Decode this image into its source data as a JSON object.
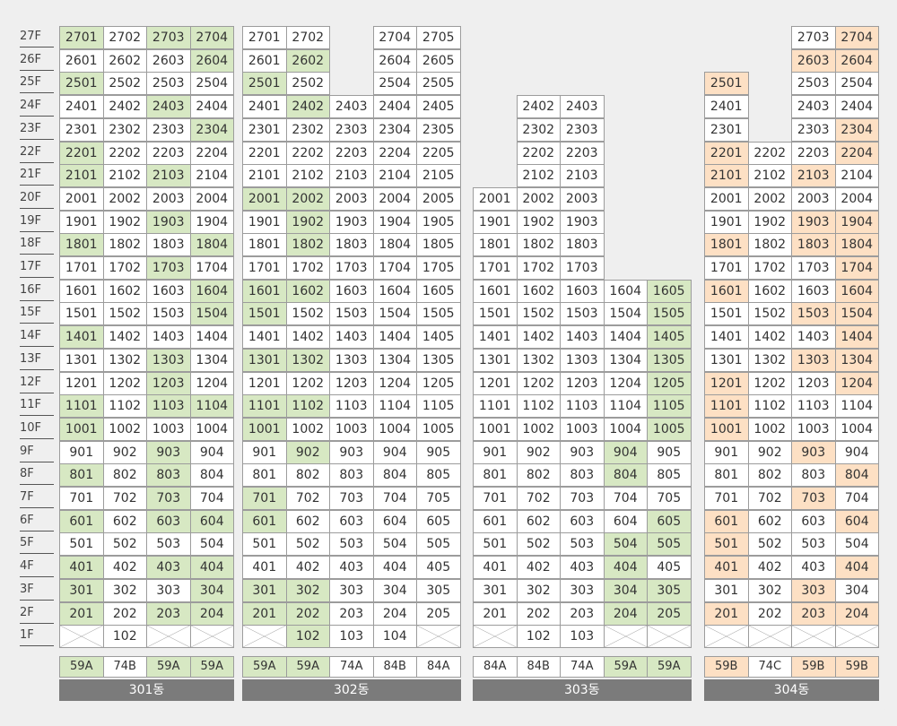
{
  "colors": {
    "green": "#d7e8c3",
    "orange": "#fde0c4",
    "empty": "#ffffff",
    "label_bar": "#7b7b7b"
  },
  "floors": [
    "27F",
    "26F",
    "25F",
    "24F",
    "23F",
    "22F",
    "21F",
    "20F",
    "19F",
    "18F",
    "17F",
    "16F",
    "15F",
    "14F",
    "13F",
    "12F",
    "11F",
    "10F",
    "9F",
    "8F",
    "7F",
    "6F",
    "5F",
    "4F",
    "3F",
    "2F",
    "1F"
  ],
  "buildings": [
    {
      "name": "301동",
      "units": 4,
      "min_floor": 1,
      "max_floor": 27,
      "color": "green",
      "types": [
        "59A",
        "74B",
        "59A",
        "59A"
      ],
      "type_colors": [
        "g",
        "",
        "g",
        "g"
      ],
      "absent": [],
      "x_cells": [
        "1-1",
        "1-3",
        "1-4"
      ],
      "highlight": [
        "27-1",
        "27-3",
        "27-4",
        "26-4",
        "25-1",
        "24-3",
        "23-4",
        "22-1",
        "21-1",
        "21-3",
        "19-3",
        "18-1",
        "18-4",
        "17-3",
        "16-4",
        "15-4",
        "14-1",
        "13-3",
        "12-3",
        "11-1",
        "11-3",
        "11-4",
        "10-1",
        "9-3",
        "8-1",
        "8-3",
        "7-3",
        "6-1",
        "6-3",
        "6-4",
        "4-1",
        "4-3",
        "4-4",
        "3-1",
        "3-4",
        "2-1",
        "2-3",
        "2-4"
      ]
    },
    {
      "name": "302동",
      "units": 5,
      "min_floor": 1,
      "max_floor": 27,
      "color": "green",
      "types": [
        "59A",
        "59A",
        "74A",
        "84B",
        "84A"
      ],
      "type_colors": [
        "g",
        "g",
        "",
        "",
        ""
      ],
      "absent": [
        "27-3",
        "26-3",
        "25-3"
      ],
      "x_cells": [
        "1-1",
        "1-5"
      ],
      "highlight": [
        "26-2",
        "25-1",
        "24-2",
        "20-1",
        "20-2",
        "19-2",
        "18-2",
        "16-1",
        "16-2",
        "15-1",
        "13-1",
        "13-2",
        "11-1",
        "11-2",
        "10-1",
        "9-2",
        "7-1",
        "6-1",
        "3-1",
        "3-2",
        "2-1",
        "2-2",
        "1-2"
      ]
    },
    {
      "name": "303동",
      "units": 5,
      "min_floor": 1,
      "max_floor": 24,
      "color": "green",
      "types": [
        "84A",
        "84B",
        "74A",
        "59A",
        "59A"
      ],
      "type_colors": [
        "",
        "",
        "",
        "g",
        "g"
      ],
      "col_ranges": [
        [
          1,
          20
        ],
        [
          1,
          24
        ],
        [
          1,
          24
        ],
        [
          1,
          16
        ],
        [
          1,
          16
        ]
      ],
      "absent": [
        "1-1"
      ],
      "x_cells": [
        "1-1",
        "1-4",
        "1-5"
      ],
      "highlight": [
        "16-5",
        "15-5",
        "14-5",
        "13-5",
        "12-5",
        "11-5",
        "10-5",
        "9-4",
        "8-4",
        "6-5",
        "5-4",
        "5-5",
        "4-4",
        "3-4",
        "3-5",
        "2-4",
        "2-5"
      ]
    },
    {
      "name": "304동",
      "units": 4,
      "min_floor": 1,
      "max_floor": 27,
      "color": "orange",
      "types": [
        "59B",
        "74C",
        "59B",
        "59B"
      ],
      "type_colors": [
        "o",
        "",
        "o",
        "o"
      ],
      "col_ranges": [
        [
          1,
          25
        ],
        [
          1,
          22
        ],
        [
          1,
          27
        ],
        [
          1,
          27
        ]
      ],
      "absent": [
        "24-2",
        "23-2",
        "25-2"
      ],
      "x_cells": [
        "1-1",
        "1-2",
        "1-3",
        "1-4"
      ],
      "highlight": [
        "27-4",
        "26-3",
        "26-4",
        "25-1",
        "23-4",
        "22-1",
        "22-4",
        "21-1",
        "21-3",
        "19-3",
        "19-4",
        "18-1",
        "18-3",
        "18-4",
        "17-4",
        "16-1",
        "16-4",
        "15-3",
        "15-4",
        "14-4",
        "13-3",
        "13-4",
        "12-1",
        "12-4",
        "11-1",
        "10-1",
        "9-3",
        "8-4",
        "7-3",
        "6-1",
        "6-4",
        "5-1",
        "4-1",
        "4-4",
        "3-3",
        "2-1",
        "2-3",
        "2-4"
      ]
    }
  ]
}
